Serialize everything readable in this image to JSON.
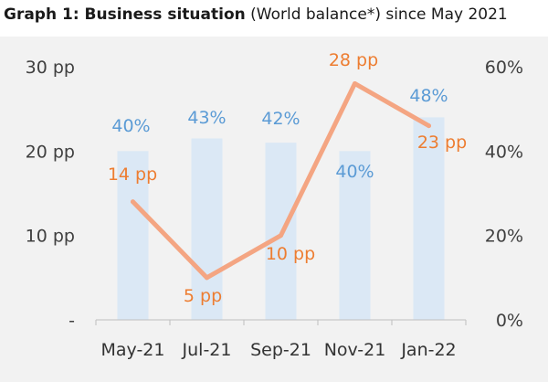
{
  "title": {
    "bold": "Graph 1: Business situation",
    "normal": " (World balance*) since May 2021"
  },
  "colors": {
    "bar": "#dbe8f5",
    "bar_label": "#5b9bd5",
    "line": "#f4a582",
    "line_label": "#ed7d31",
    "panel": "#f2f2f2"
  },
  "chart_data": {
    "type": "bar+line",
    "categories": [
      "May-21",
      "Jul-21",
      "Sep-21",
      "Nov-21",
      "Jan-22"
    ],
    "series": [
      {
        "type": "bar",
        "axis": "right",
        "values": [
          40,
          43,
          42,
          40,
          48
        ],
        "labels": [
          "40%",
          "43%",
          "42%",
          "40%",
          "48%"
        ]
      },
      {
        "type": "line",
        "axis": "left",
        "values": [
          14,
          5,
          10,
          28,
          23
        ],
        "labels": [
          "14 pp",
          "5 pp",
          "10 pp",
          "28 pp",
          "23 pp"
        ]
      }
    ],
    "left_axis": {
      "min": 0,
      "max": 30,
      "ticks": [
        "-",
        "10 pp",
        "20 pp",
        "30 pp"
      ],
      "tick_values": [
        0,
        10,
        20,
        30
      ]
    },
    "right_axis": {
      "min": 0,
      "max": 60,
      "ticks": [
        "0%",
        "20%",
        "40%",
        "60%"
      ],
      "tick_values": [
        0,
        20,
        40,
        60
      ]
    },
    "grid": false,
    "legend": "none"
  }
}
